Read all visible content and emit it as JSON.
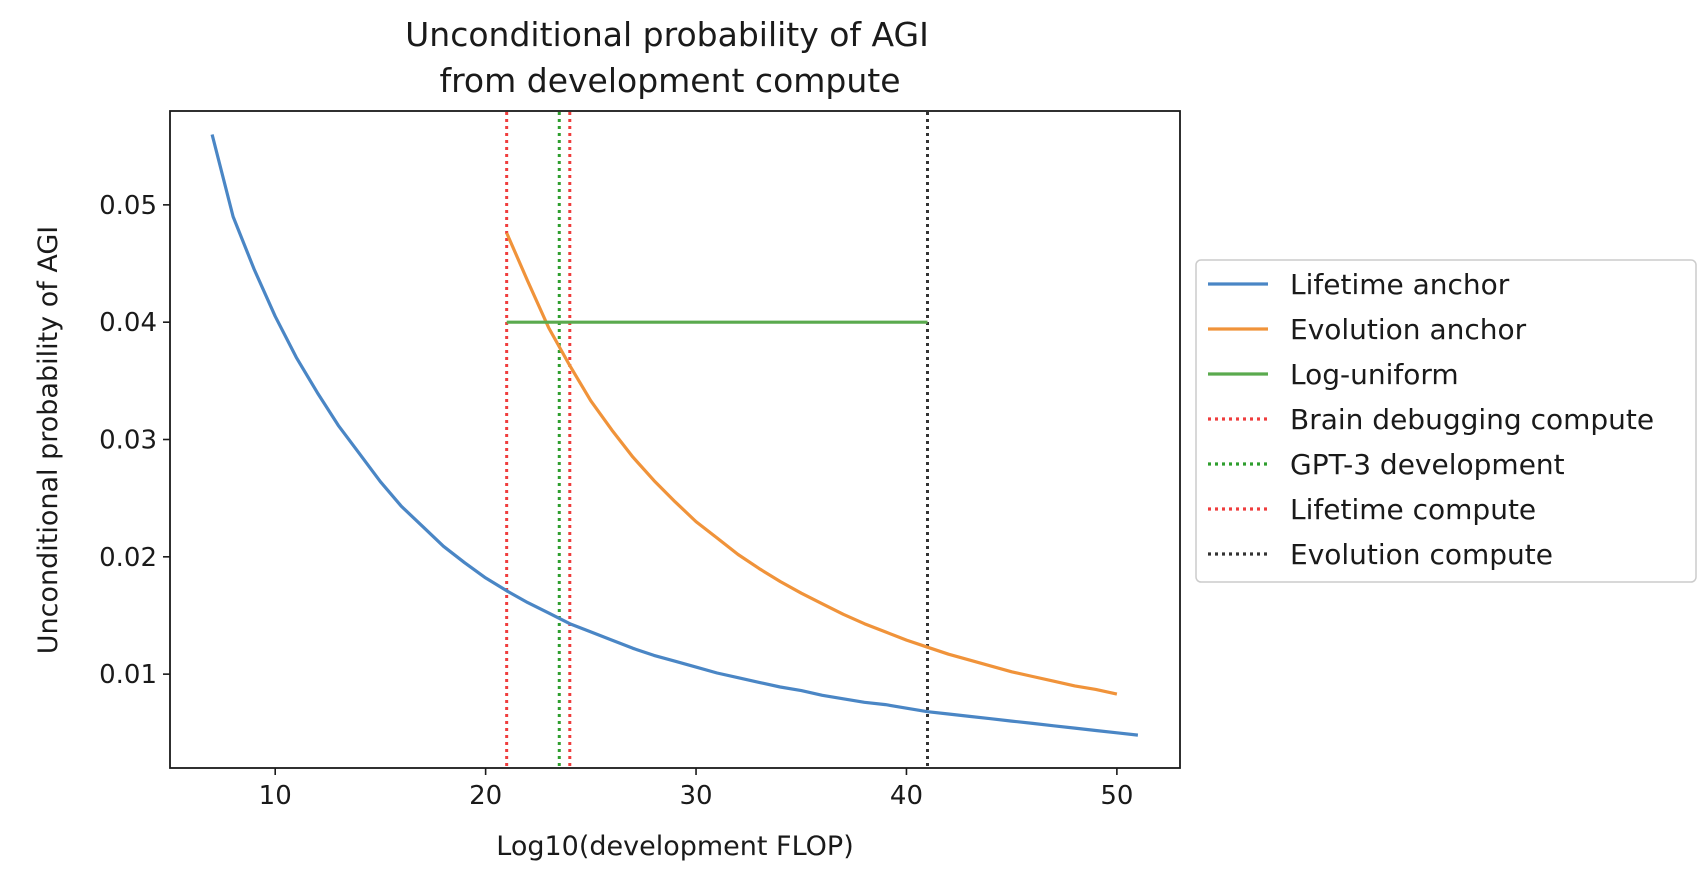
{
  "chart_data": {
    "type": "line",
    "title": [
      "Unconditional probability of AGI",
      "from development compute"
    ],
    "xlabel": "Log10(development FLOP)",
    "ylabel": "Unconditional probability of AGI",
    "xlim": [
      5,
      53
    ],
    "ylim": [
      0.002,
      0.058
    ],
    "xticks": [
      10,
      20,
      30,
      40,
      50
    ],
    "yticks": [
      0.01,
      0.02,
      0.03,
      0.04,
      0.05
    ],
    "xtick_labels": [
      "10",
      "20",
      "30",
      "40",
      "50"
    ],
    "ytick_labels": [
      "0.01",
      "0.02",
      "0.03",
      "0.04",
      "0.05"
    ],
    "legend_position": "right-outside",
    "series": [
      {
        "name": "Lifetime anchor",
        "style": "solid",
        "color": "#4a86c5",
        "x": [
          7,
          8,
          9,
          10,
          11,
          12,
          13,
          14,
          15,
          16,
          17,
          18,
          19,
          20,
          21,
          22,
          23,
          24,
          25,
          26,
          27,
          28,
          29,
          30,
          31,
          32,
          33,
          34,
          35,
          36,
          37,
          38,
          39,
          40,
          41,
          42,
          43,
          44,
          45,
          46,
          47,
          48,
          49,
          50,
          51
        ],
        "y": [
          0.056,
          0.049,
          0.0445,
          0.0405,
          0.037,
          0.034,
          0.0312,
          0.0288,
          0.0264,
          0.0243,
          0.0226,
          0.0209,
          0.0195,
          0.0182,
          0.0171,
          0.0161,
          0.0152,
          0.0143,
          0.0136,
          0.0129,
          0.0122,
          0.0116,
          0.0111,
          0.0106,
          0.0101,
          0.0097,
          0.0093,
          0.0089,
          0.0086,
          0.0082,
          0.0079,
          0.0076,
          0.0074,
          0.0071,
          0.0068,
          0.0066,
          0.0064,
          0.0062,
          0.006,
          0.0058,
          0.0056,
          0.0054,
          0.0052,
          0.005,
          0.0048
        ]
      },
      {
        "name": "Evolution anchor",
        "style": "solid",
        "color": "#f0933a",
        "x": [
          21,
          22,
          23,
          24,
          25,
          26,
          27,
          28,
          29,
          30,
          31,
          32,
          33,
          34,
          35,
          36,
          37,
          38,
          39,
          40,
          41,
          42,
          43,
          44,
          45,
          46,
          47,
          48,
          49,
          50
        ],
        "y": [
          0.0476,
          0.0435,
          0.0395,
          0.0363,
          0.0333,
          0.0308,
          0.0285,
          0.0265,
          0.0247,
          0.023,
          0.0216,
          0.0202,
          0.019,
          0.0179,
          0.0169,
          0.016,
          0.0151,
          0.0143,
          0.0136,
          0.0129,
          0.0123,
          0.0117,
          0.0112,
          0.0107,
          0.0102,
          0.0098,
          0.0094,
          0.009,
          0.0087,
          0.0083
        ]
      },
      {
        "name": "Log-uniform",
        "style": "solid",
        "color": "#5aaa4e",
        "x": [
          21,
          41
        ],
        "y": [
          0.04,
          0.04
        ]
      }
    ],
    "vlines": [
      {
        "name": "Brain debugging compute",
        "x": 21,
        "color": "#ef3d3d",
        "style": "dotted"
      },
      {
        "name": "GPT-3 development",
        "x": 23.5,
        "color": "#2e9e2e",
        "style": "dotted"
      },
      {
        "name": "Lifetime compute",
        "x": 24,
        "color": "#ef3d3d",
        "style": "dotted"
      },
      {
        "name": "Evolution compute",
        "x": 41,
        "color": "#333333",
        "style": "dotted"
      }
    ],
    "legend": [
      "Lifetime anchor",
      "Evolution anchor",
      "Log-uniform",
      "Brain debugging compute",
      "GPT-3 development",
      "Lifetime compute",
      "Evolution compute"
    ]
  }
}
